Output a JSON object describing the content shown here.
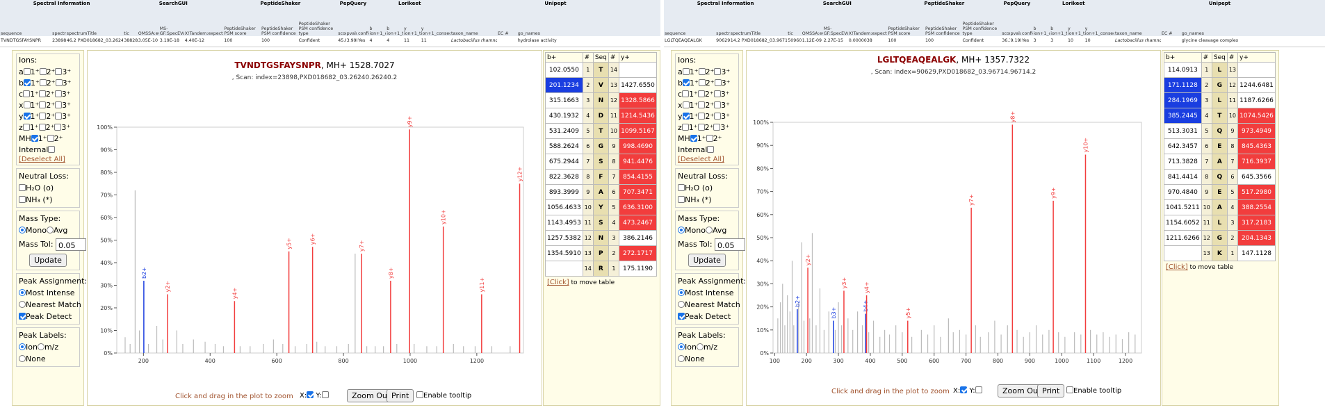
{
  "header_groups": {
    "spectral_information": "Spectral Information",
    "searchgui": "SearchGUI",
    "peptideshaker": "PeptideShaker",
    "pepquery": "PepQuery",
    "lorikeet": "Lorikeet",
    "unipept": "Unipept"
  },
  "left": {
    "columns": [
      "sequence",
      "spectrumID",
      "spectrumTitle",
      "tic",
      "OMSSA:evalue",
      "MS-GF:SpecEValue",
      "X!Tandem:expect",
      "PeptideShaker PSM score",
      "PeptideShaker PSM confidence",
      "PeptideShaker PSM confidence type",
      "score",
      "pvalue",
      "confident",
      "b ion+1_consecutive_run",
      "b ion+1_total_ions",
      "y ion+1_total_ions",
      "y ion+1_consecutive_run",
      "taxon_name",
      "EC #",
      "go_names"
    ],
    "row": [
      "TVNDTGSFAYSNPR",
      "23898",
      "46.2 PXD018682_03.26240.262",
      "38828.8",
      "3.05E-10",
      "3.19E-18",
      "4.40E-12",
      "100",
      "100",
      "Confident",
      "45.8",
      "3.99E-04",
      "Yes",
      "4",
      "4",
      "11",
      "11",
      "Lactobacillus rhamnosus",
      "",
      "hydrolase activity"
    ],
    "peptide": "TVNDTGSFAYSNPR",
    "mh": ", MH+ 1528.7027",
    "scan": ", Scan: index=23898,PXD018682_03.26240.26240.2",
    "y_ticks": [
      "0%",
      "10%",
      "20%",
      "30%",
      "40%",
      "50%",
      "60%",
      "70%",
      "80%",
      "90%",
      "100%"
    ],
    "x_ticks": [
      "200",
      "400",
      "600",
      "800",
      "1000",
      "1200"
    ],
    "chart_data": {
      "type": "bar",
      "title": "TVNDTGSFAYSNPR",
      "xlim": [
        120,
        1340
      ],
      "ylim": [
        0,
        100
      ],
      "annotated_peaks": [
        {
          "label": "b2+",
          "mz": 201.12,
          "intensity": 32,
          "ion": "b"
        },
        {
          "label": "y2+",
          "mz": 272.17,
          "intensity": 26,
          "ion": "y"
        },
        {
          "label": "y4+",
          "mz": 473.25,
          "intensity": 23,
          "ion": "y"
        },
        {
          "label": "y5+",
          "mz": 636.31,
          "intensity": 45,
          "ion": "y"
        },
        {
          "label": "y6+",
          "mz": 707.35,
          "intensity": 47,
          "ion": "y"
        },
        {
          "label": "y7+",
          "mz": 854.42,
          "intensity": 44,
          "ion": "y"
        },
        {
          "label": "y8+",
          "mz": 941.45,
          "intensity": 32,
          "ion": "y"
        },
        {
          "label": "y9+",
          "mz": 998.47,
          "intensity": 99,
          "ion": "y"
        },
        {
          "label": "y10+",
          "mz": 1099.52,
          "intensity": 56,
          "ion": "y"
        },
        {
          "label": "y11+",
          "mz": 1214.54,
          "intensity": 26,
          "ion": "y"
        },
        {
          "label": "y12+",
          "mz": 1328.59,
          "intensity": 75,
          "ion": "y"
        }
      ],
      "other_peaks": [
        [
          175,
          72
        ],
        [
          145,
          7
        ],
        [
          160,
          4
        ],
        [
          188,
          10
        ],
        [
          215,
          4
        ],
        [
          240,
          12
        ],
        [
          258,
          6
        ],
        [
          300,
          10
        ],
        [
          318,
          4
        ],
        [
          350,
          6
        ],
        [
          385,
          5
        ],
        [
          415,
          4
        ],
        [
          440,
          3
        ],
        [
          490,
          3
        ],
        [
          520,
          3
        ],
        [
          560,
          4
        ],
        [
          590,
          6
        ],
        [
          618,
          4
        ],
        [
          655,
          3
        ],
        [
          690,
          4
        ],
        [
          720,
          5
        ],
        [
          745,
          3
        ],
        [
          780,
          3
        ],
        [
          815,
          4
        ],
        [
          835,
          44
        ],
        [
          870,
          3
        ],
        [
          895,
          3
        ],
        [
          920,
          3
        ],
        [
          960,
          4
        ],
        [
          1012,
          4
        ],
        [
          1050,
          3
        ],
        [
          1080,
          3
        ],
        [
          1130,
          4
        ],
        [
          1160,
          3
        ],
        [
          1195,
          3
        ],
        [
          1245,
          3
        ],
        [
          1300,
          3
        ]
      ]
    },
    "table": {
      "headers": [
        "b+",
        "#",
        "Seq",
        "#",
        "y+"
      ],
      "rows": [
        {
          "b": "102.0550",
          "bhit": false,
          "n1": "1",
          "aa": "T",
          "n2": "14",
          "y": "",
          "yhit": false
        },
        {
          "b": "201.1234",
          "bhit": true,
          "n1": "2",
          "aa": "V",
          "n2": "13",
          "y": "1427.6550",
          "yhit": false
        },
        {
          "b": "315.1663",
          "bhit": false,
          "n1": "3",
          "aa": "N",
          "n2": "12",
          "y": "1328.5866",
          "yhit": true
        },
        {
          "b": "430.1932",
          "bhit": false,
          "n1": "4",
          "aa": "D",
          "n2": "11",
          "y": "1214.5436",
          "yhit": true
        },
        {
          "b": "531.2409",
          "bhit": false,
          "n1": "5",
          "aa": "T",
          "n2": "10",
          "y": "1099.5167",
          "yhit": true
        },
        {
          "b": "588.2624",
          "bhit": false,
          "n1": "6",
          "aa": "G",
          "n2": "9",
          "y": "998.4690",
          "yhit": true
        },
        {
          "b": "675.2944",
          "bhit": false,
          "n1": "7",
          "aa": "S",
          "n2": "8",
          "y": "941.4476",
          "yhit": true
        },
        {
          "b": "822.3628",
          "bhit": false,
          "n1": "8",
          "aa": "F",
          "n2": "7",
          "y": "854.4155",
          "yhit": true
        },
        {
          "b": "893.3999",
          "bhit": false,
          "n1": "9",
          "aa": "A",
          "n2": "6",
          "y": "707.3471",
          "yhit": true
        },
        {
          "b": "1056.4633",
          "bhit": false,
          "n1": "10",
          "aa": "Y",
          "n2": "5",
          "y": "636.3100",
          "yhit": true
        },
        {
          "b": "1143.4953",
          "bhit": false,
          "n1": "11",
          "aa": "S",
          "n2": "4",
          "y": "473.2467",
          "yhit": true
        },
        {
          "b": "1257.5382",
          "bhit": false,
          "n1": "12",
          "aa": "N",
          "n2": "3",
          "y": "386.2146",
          "yhit": false
        },
        {
          "b": "1354.5910",
          "bhit": false,
          "n1": "13",
          "aa": "P",
          "n2": "2",
          "y": "272.1717",
          "yhit": true
        },
        {
          "b": "",
          "bhit": false,
          "n1": "14",
          "aa": "R",
          "n2": "1",
          "y": "175.1190",
          "yhit": false
        }
      ]
    }
  },
  "right": {
    "columns": [
      "sequence",
      "spectrumID",
      "spectrumTitle",
      "tic",
      "OMSSA:evalue",
      "MS-GF:SpecEValue",
      "X!Tandem:expect",
      "PeptideShaker PSM score",
      "PeptideShaker PSM confidence",
      "PeptideShaker PSM confidence type",
      "score",
      "pvalue",
      "confident",
      "b ion+1_consecutive_run",
      "b ion+1_total_ions",
      "y ion+1_total_ions",
      "y ion+1_consecutive_run",
      "taxon_name",
      "EC #",
      "go_names"
    ],
    "row": [
      "LGLTQEAQEALGK",
      "90629",
      "14.2 PXD018682_03.96714.967",
      "50960.07",
      "1.12E-09",
      "2.27E-15",
      "0.0000038",
      "100",
      "100",
      "Confident",
      "36.1",
      "9.19E-04",
      "Yes",
      "3",
      "3",
      "10",
      "10",
      "Lactobacillus rhamnosus",
      "",
      "glycine cleavage complex"
    ],
    "peptide": "LGLTQEAQEALGK",
    "mh": ", MH+ 1357.7322",
    "scan": ", Scan: index=90629,PXD018682_03.96714.96714.2",
    "y_ticks": [
      "0%",
      "10%",
      "20%",
      "30%",
      "40%",
      "50%",
      "60%",
      "70%",
      "80%",
      "90%",
      "100%"
    ],
    "x_ticks": [
      "100",
      "200",
      "300",
      "400",
      "500",
      "600",
      "700",
      "800",
      "900",
      "1000",
      "1100",
      "1200"
    ],
    "chart_data": {
      "type": "bar",
      "title": "LGLTQEAQEALGK",
      "xlim": [
        95,
        1250
      ],
      "ylim": [
        0,
        100
      ],
      "annotated_peaks": [
        {
          "label": "b2+",
          "mz": 171.11,
          "intensity": 19,
          "ion": "b"
        },
        {
          "label": "y2+",
          "mz": 204.13,
          "intensity": 37,
          "ion": "y"
        },
        {
          "label": "b3+",
          "mz": 284.2,
          "intensity": 14,
          "ion": "b"
        },
        {
          "label": "y3+",
          "mz": 317.22,
          "intensity": 27,
          "ion": "y"
        },
        {
          "label": "b4+",
          "mz": 385.24,
          "intensity": 17,
          "ion": "b"
        },
        {
          "label": "y4+",
          "mz": 388.26,
          "intensity": 25,
          "ion": "y"
        },
        {
          "label": "y5+",
          "mz": 517.3,
          "intensity": 14,
          "ion": "y"
        },
        {
          "label": "y7+",
          "mz": 716.39,
          "intensity": 63,
          "ion": "y"
        },
        {
          "label": "y8+",
          "mz": 845.44,
          "intensity": 99,
          "ion": "y"
        },
        {
          "label": "y9+",
          "mz": 973.49,
          "intensity": 66,
          "ion": "y"
        },
        {
          "label": "y10+",
          "mz": 1074.54,
          "intensity": 86,
          "ion": "y"
        }
      ],
      "other_peaks": [
        [
          110,
          15
        ],
        [
          118,
          22
        ],
        [
          125,
          30
        ],
        [
          132,
          12
        ],
        [
          140,
          25
        ],
        [
          148,
          18
        ],
        [
          155,
          40
        ],
        [
          160,
          12
        ],
        [
          175,
          22
        ],
        [
          185,
          48
        ],
        [
          192,
          14
        ],
        [
          210,
          15
        ],
        [
          218,
          52
        ],
        [
          230,
          12
        ],
        [
          242,
          28
        ],
        [
          255,
          10
        ],
        [
          270,
          18
        ],
        [
          290,
          10
        ],
        [
          300,
          22
        ],
        [
          310,
          12
        ],
        [
          330,
          15
        ],
        [
          345,
          10
        ],
        [
          360,
          18
        ],
        [
          375,
          12
        ],
        [
          395,
          9
        ],
        [
          410,
          14
        ],
        [
          430,
          7
        ],
        [
          445,
          10
        ],
        [
          460,
          8
        ],
        [
          480,
          12
        ],
        [
          500,
          9
        ],
        [
          530,
          7
        ],
        [
          560,
          10
        ],
        [
          580,
          8
        ],
        [
          600,
          12
        ],
        [
          620,
          7
        ],
        [
          645,
          15
        ],
        [
          660,
          9
        ],
        [
          680,
          10
        ],
        [
          700,
          8
        ],
        [
          730,
          12
        ],
        [
          745,
          7
        ],
        [
          770,
          9
        ],
        [
          790,
          14
        ],
        [
          810,
          8
        ],
        [
          830,
          12
        ],
        [
          860,
          10
        ],
        [
          880,
          7
        ],
        [
          900,
          9
        ],
        [
          920,
          12
        ],
        [
          940,
          8
        ],
        [
          960,
          10
        ],
        [
          990,
          9
        ],
        [
          1010,
          7
        ],
        [
          1040,
          9
        ],
        [
          1060,
          8
        ],
        [
          1090,
          10
        ],
        [
          1110,
          8
        ],
        [
          1130,
          9
        ],
        [
          1150,
          7
        ],
        [
          1170,
          8
        ],
        [
          1190,
          6
        ],
        [
          1210,
          9
        ],
        [
          1230,
          8
        ]
      ]
    },
    "table": {
      "headers": [
        "b+",
        "#",
        "Seq",
        "#",
        "y+"
      ],
      "rows": [
        {
          "b": "114.0913",
          "bhit": false,
          "n1": "1",
          "aa": "L",
          "n2": "13",
          "y": "",
          "yhit": false
        },
        {
          "b": "171.1128",
          "bhit": true,
          "n1": "2",
          "aa": "G",
          "n2": "12",
          "y": "1244.6481",
          "yhit": false
        },
        {
          "b": "284.1969",
          "bhit": true,
          "n1": "3",
          "aa": "L",
          "n2": "11",
          "y": "1187.6266",
          "yhit": false
        },
        {
          "b": "385.2445",
          "bhit": true,
          "n1": "4",
          "aa": "T",
          "n2": "10",
          "y": "1074.5426",
          "yhit": true
        },
        {
          "b": "513.3031",
          "bhit": false,
          "n1": "5",
          "aa": "Q",
          "n2": "9",
          "y": "973.4949",
          "yhit": true
        },
        {
          "b": "642.3457",
          "bhit": false,
          "n1": "6",
          "aa": "E",
          "n2": "8",
          "y": "845.4363",
          "yhit": true
        },
        {
          "b": "713.3828",
          "bhit": false,
          "n1": "7",
          "aa": "A",
          "n2": "7",
          "y": "716.3937",
          "yhit": true
        },
        {
          "b": "841.4414",
          "bhit": false,
          "n1": "8",
          "aa": "Q",
          "n2": "6",
          "y": "645.3566",
          "yhit": false
        },
        {
          "b": "970.4840",
          "bhit": false,
          "n1": "9",
          "aa": "E",
          "n2": "5",
          "y": "517.2980",
          "yhit": true
        },
        {
          "b": "1041.5211",
          "bhit": false,
          "n1": "10",
          "aa": "A",
          "n2": "4",
          "y": "388.2554",
          "yhit": true
        },
        {
          "b": "1154.6052",
          "bhit": false,
          "n1": "11",
          "aa": "L",
          "n2": "3",
          "y": "317.2183",
          "yhit": true
        },
        {
          "b": "1211.6266",
          "bhit": false,
          "n1": "12",
          "aa": "G",
          "n2": "2",
          "y": "204.1343",
          "yhit": true
        },
        {
          "b": "",
          "bhit": false,
          "n1": "13",
          "aa": "K",
          "n2": "1",
          "y": "147.1128",
          "yhit": false
        }
      ]
    }
  },
  "controls": {
    "ions_label": "Ions:",
    "ion_rows": [
      {
        "name": "a",
        "c1": false,
        "c2": false,
        "c3": false
      },
      {
        "name": "b",
        "c1": true,
        "c2": false,
        "c3": false
      },
      {
        "name": "c",
        "c1": false,
        "c2": false,
        "c3": false
      },
      {
        "name": "x",
        "c1": false,
        "c2": false,
        "c3": false
      },
      {
        "name": "y",
        "c1": true,
        "c2": false,
        "c3": false
      },
      {
        "name": "z",
        "c1": false,
        "c2": false,
        "c3": false
      }
    ],
    "charge1": "1⁺",
    "charge2": "2⁺",
    "charge3": "3⁺",
    "mh_label": "MH",
    "internal_label": "Internal",
    "deselect_all": "[Deselect All]",
    "neutral_loss_label": "Neutral Loss:",
    "h2o_label": "H₂O (o)",
    "nh3_label": "NH₃ (*)",
    "mass_type_label": "Mass Type:",
    "mono_label": "Mono",
    "avg_label": "Avg",
    "mass_tol_label": "Mass Tol:",
    "mass_tol_value": "0.05",
    "update_label": "Update",
    "peak_assignment_label": "Peak Assignment:",
    "most_intense_label": "Most Intense",
    "nearest_match_label": "Nearest Match",
    "peak_detect_label": "Peak Detect",
    "peak_labels_label": "Peak Labels:",
    "ion_label": "Ion",
    "mz_label": "m/z",
    "none_label": "None"
  },
  "plot_controls": {
    "zoom_hint": "Click and drag in the plot to zoom",
    "x_label": "X:",
    "y_label": "Y:",
    "zoom_out": "Zoom Out",
    "print": "Print",
    "tooltip": "Enable tooltip",
    "click_link": "[Click]",
    "move_table": " to move table"
  },
  "colors": {
    "b_ion": "#1a3ee0",
    "y_ion": "#f23d3d",
    "other": "#bbbbbb",
    "peptide": "#8b0000"
  }
}
